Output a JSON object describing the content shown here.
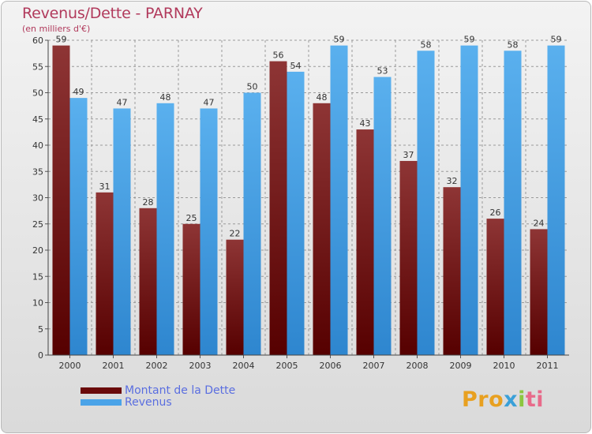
{
  "title": "Revenus/Dette - PARNAY",
  "subtitle": "(en milliers d'€)",
  "logo": {
    "part1": "Pro",
    "part2": "x",
    "part3": "i",
    "part4": "ti"
  },
  "colors": {
    "debt": "#7a1a1a",
    "revenue": "#4aa3e8",
    "title": "#b13a5c",
    "legend_text": "#5a6ee0"
  },
  "chart_data": {
    "type": "bar",
    "categories": [
      "2000",
      "2001",
      "2002",
      "2003",
      "2004",
      "2005",
      "2006",
      "2007",
      "2008",
      "2009",
      "2010",
      "2011"
    ],
    "series": [
      {
        "name": "Montant de la Dette",
        "values": [
          59,
          31,
          28,
          25,
          22,
          56,
          48,
          43,
          37,
          32,
          26,
          24
        ]
      },
      {
        "name": "Revenus",
        "values": [
          49,
          47,
          48,
          47,
          50,
          54,
          59,
          53,
          58,
          59,
          58,
          59
        ]
      }
    ],
    "ylim": [
      0,
      60
    ],
    "yticks": [
      0,
      5,
      10,
      15,
      20,
      25,
      30,
      35,
      40,
      45,
      50,
      55,
      60
    ],
    "grid": true,
    "legend": "bottom-left"
  }
}
